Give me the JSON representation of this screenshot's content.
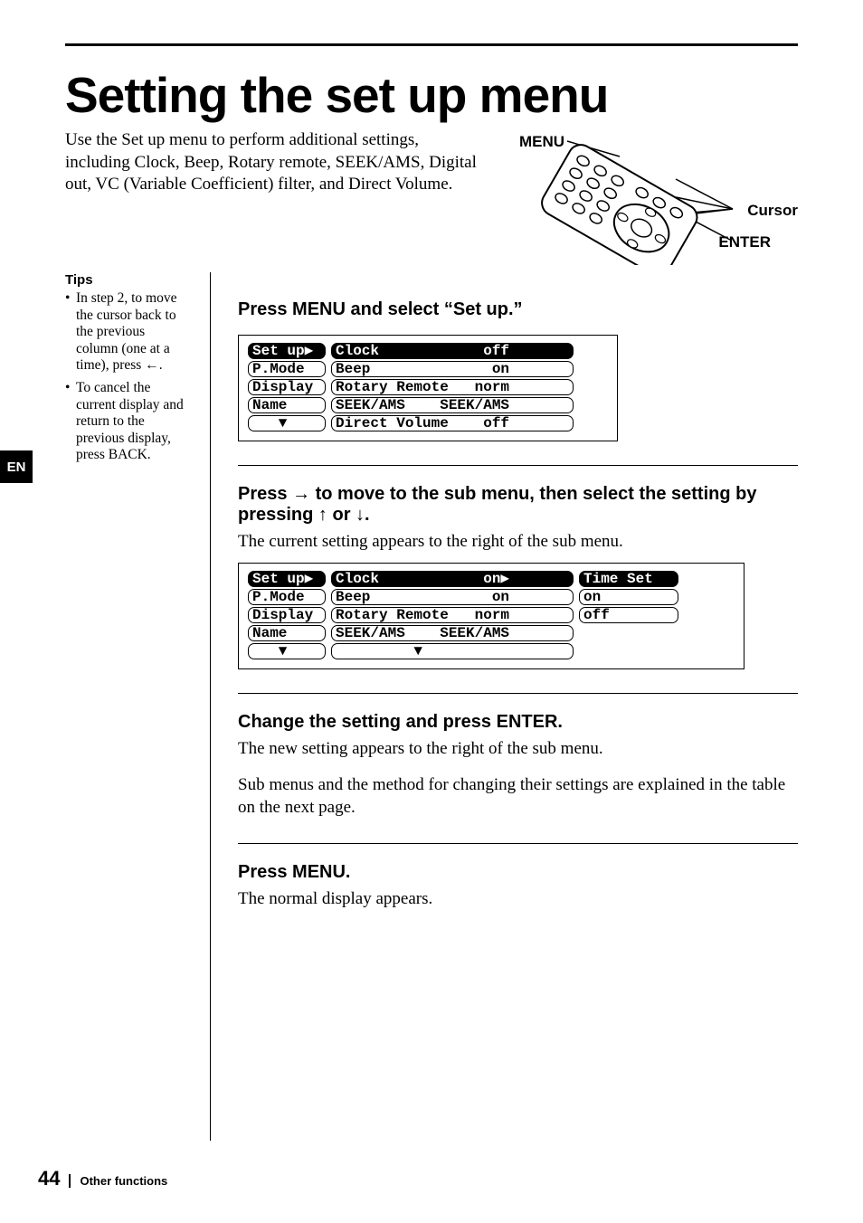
{
  "title": "Setting the set up menu",
  "intro": "Use the Set up menu to perform additional settings, including Clock, Beep, Rotary remote, SEEK/AMS, Digital out, VC (Variable Coefficient) filter, and Direct Volume.",
  "remote": {
    "menu_label": "MENU",
    "cursor_label": "Cursor",
    "enter_label": "ENTER"
  },
  "tips": {
    "heading": "Tips",
    "items": [
      "In step 2, to move the cursor back to the previous column (one at a time), press ←.",
      "To cancel the current display and return to the previous display, press BACK."
    ]
  },
  "lang_tab": "EN",
  "steps": [
    {
      "title": "Press MENU and select “Set up.”"
    },
    {
      "title_parts": [
        "Press ",
        "→",
        " to move to the sub menu, then select the setting by pressing ",
        "↑",
        " or ",
        "↓",
        "."
      ],
      "body": "The current setting appears to the right of the sub menu."
    },
    {
      "title": "Change the setting and press ENTER.",
      "body": "The new setting appears to the right of the sub menu.",
      "body2": "Sub menus and the method for changing their settings are explained in the table on the next page."
    },
    {
      "title": "Press MENU.",
      "body": "The normal display appears."
    }
  ],
  "screen1": {
    "col1": [
      "Set up▶",
      "P.Mode ",
      "Display",
      "Name   ",
      "   ▼   "
    ],
    "col2": [
      "Clock            off",
      "Beep              on",
      "Rotary Remote   norm",
      "SEEK/AMS    SEEK/AMS",
      "Direct Volume    off"
    ],
    "col1_inv": [
      true,
      false,
      false,
      false,
      false
    ],
    "col2_inv": [
      true,
      false,
      false,
      false,
      false
    ]
  },
  "screen2": {
    "col1": [
      "Set up▶",
      "P.Mode ",
      "Display",
      "Name   ",
      "   ▼   "
    ],
    "col2": [
      "Clock            on▶",
      "Beep              on",
      "Rotary Remote   norm",
      "SEEK/AMS    SEEK/AMS",
      "         ▼          "
    ],
    "col3": [
      "Time Set",
      "on      ",
      "off     "
    ],
    "col1_inv": [
      true,
      false,
      false,
      false,
      false
    ],
    "col2_inv": [
      true,
      false,
      false,
      false,
      false
    ],
    "col3_inv": [
      true,
      false,
      false
    ]
  },
  "footer": {
    "page": "44",
    "section": "Other functions"
  },
  "colors": {
    "text": "#000000",
    "bg": "#ffffff"
  }
}
